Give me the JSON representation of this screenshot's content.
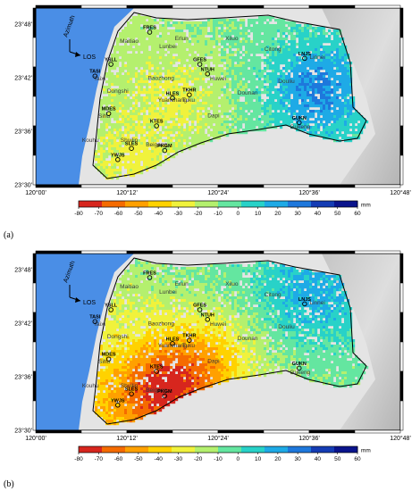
{
  "panels": [
    {
      "label": "(a)",
      "stations": [
        {
          "name": "FRES",
          "lon": 120.25,
          "lat": 23.785
        },
        {
          "name": "YSLL",
          "lon": 120.165,
          "lat": 23.725
        },
        {
          "name": "TASI",
          "lon": 120.13,
          "lat": 23.703
        },
        {
          "name": "GFES",
          "lon": 120.36,
          "lat": 23.725
        },
        {
          "name": "NTUH",
          "lon": 120.377,
          "lat": 23.707
        },
        {
          "name": "LNJS",
          "lon": 120.59,
          "lat": 23.736
        },
        {
          "name": "HLES",
          "lon": 120.3,
          "lat": 23.662
        },
        {
          "name": "TKHR",
          "lon": 120.337,
          "lat": 23.668
        },
        {
          "name": "MDES",
          "lon": 120.16,
          "lat": 23.633
        },
        {
          "name": "KTES",
          "lon": 120.265,
          "lat": 23.61
        },
        {
          "name": "GUKN",
          "lon": 120.578,
          "lat": 23.616
        },
        {
          "name": "SLES",
          "lon": 120.21,
          "lat": 23.568
        },
        {
          "name": "PKGM",
          "lon": 120.283,
          "lat": 23.564
        },
        {
          "name": "YWJS",
          "lon": 120.18,
          "lat": 23.547
        }
      ],
      "places": [
        {
          "name": "Maitiao",
          "lon": 120.205,
          "lat": 23.765
        },
        {
          "name": "Erlun",
          "lon": 120.32,
          "lat": 23.77
        },
        {
          "name": "Lunbei",
          "lon": 120.29,
          "lat": 23.755
        },
        {
          "name": "Xiluo",
          "lon": 120.43,
          "lat": 23.77
        },
        {
          "name": "Citong",
          "lon": 120.52,
          "lat": 23.75
        },
        {
          "name": "Linnei",
          "lon": 120.618,
          "lat": 23.735
        },
        {
          "name": "Taixi",
          "lon": 120.14,
          "lat": 23.695
        },
        {
          "name": "Baozhong",
          "lon": 120.275,
          "lat": 23.696
        },
        {
          "name": "Huwei",
          "lon": 120.4,
          "lat": 23.695
        },
        {
          "name": "Douliu",
          "lon": 120.55,
          "lat": 23.69
        },
        {
          "name": "Dongshi",
          "lon": 120.18,
          "lat": 23.672
        },
        {
          "name": "Yuanchang",
          "lon": 120.3,
          "lat": 23.655
        },
        {
          "name": "Tuku",
          "lon": 120.335,
          "lat": 23.655
        },
        {
          "name": "Dounan",
          "lon": 120.465,
          "lat": 23.668
        },
        {
          "name": "Sihu",
          "lon": 120.15,
          "lat": 23.625
        },
        {
          "name": "Dapi",
          "lon": 120.39,
          "lat": 23.626
        },
        {
          "name": "Gukeng",
          "lon": 120.58,
          "lat": 23.605
        },
        {
          "name": "Kouhu",
          "lon": 120.12,
          "lat": 23.58
        },
        {
          "name": "Shuilin",
          "lon": 120.205,
          "lat": 23.58
        },
        {
          "name": "Beigang",
          "lon": 120.265,
          "lat": 23.572
        }
      ]
    },
    {
      "label": "(b)",
      "stations": [
        {
          "name": "FRES",
          "lon": 120.25,
          "lat": 23.785
        },
        {
          "name": "YSLL",
          "lon": 120.165,
          "lat": 23.725
        },
        {
          "name": "TASI",
          "lon": 120.13,
          "lat": 23.703
        },
        {
          "name": "GFES",
          "lon": 120.36,
          "lat": 23.725
        },
        {
          "name": "NTUH",
          "lon": 120.377,
          "lat": 23.707
        },
        {
          "name": "LNJS",
          "lon": 120.59,
          "lat": 23.736
        },
        {
          "name": "HLES",
          "lon": 120.3,
          "lat": 23.662
        },
        {
          "name": "TKHR",
          "lon": 120.337,
          "lat": 23.668
        },
        {
          "name": "MDES",
          "lon": 120.16,
          "lat": 23.633
        },
        {
          "name": "KTES",
          "lon": 120.265,
          "lat": 23.61
        },
        {
          "name": "GUKN",
          "lon": 120.578,
          "lat": 23.616
        },
        {
          "name": "SLES",
          "lon": 120.21,
          "lat": 23.568
        },
        {
          "name": "PKGM",
          "lon": 120.283,
          "lat": 23.564
        },
        {
          "name": "YWJS",
          "lon": 120.18,
          "lat": 23.547
        }
      ],
      "places": [
        {
          "name": "Maitiao",
          "lon": 120.205,
          "lat": 23.765
        },
        {
          "name": "Erlun",
          "lon": 120.32,
          "lat": 23.77
        },
        {
          "name": "Lunbei",
          "lon": 120.29,
          "lat": 23.755
        },
        {
          "name": "Xiluo",
          "lon": 120.43,
          "lat": 23.77
        },
        {
          "name": "Citong",
          "lon": 120.52,
          "lat": 23.75
        },
        {
          "name": "Linnei",
          "lon": 120.618,
          "lat": 23.735
        },
        {
          "name": "Taixi",
          "lon": 120.14,
          "lat": 23.695
        },
        {
          "name": "Baozhong",
          "lon": 120.275,
          "lat": 23.696
        },
        {
          "name": "Huwei",
          "lon": 120.4,
          "lat": 23.695
        },
        {
          "name": "Douliu",
          "lon": 120.55,
          "lat": 23.69
        },
        {
          "name": "Dongshi",
          "lon": 120.18,
          "lat": 23.672
        },
        {
          "name": "Yuanchang",
          "lon": 120.3,
          "lat": 23.655
        },
        {
          "name": "Tuku",
          "lon": 120.335,
          "lat": 23.655
        },
        {
          "name": "Dounan",
          "lon": 120.465,
          "lat": 23.668
        },
        {
          "name": "Sihu",
          "lon": 120.15,
          "lat": 23.625
        },
        {
          "name": "Dapi",
          "lon": 120.39,
          "lat": 23.626
        },
        {
          "name": "Gukeng",
          "lon": 120.58,
          "lat": 23.605
        },
        {
          "name": "Kouhu",
          "lon": 120.12,
          "lat": 23.58
        },
        {
          "name": "Shuilin",
          "lon": 120.205,
          "lat": 23.58
        },
        {
          "name": "Beigang",
          "lon": 120.265,
          "lat": 23.572
        }
      ]
    }
  ],
  "axes": {
    "lon_ticks": [
      "120°00'",
      "120°12'",
      "120°24'",
      "120°36'",
      "120°48'"
    ],
    "lat_ticks": [
      "23°48'",
      "23°42'",
      "23°36'",
      "23°30'"
    ],
    "lon_range": [
      120.0,
      120.8
    ],
    "lat_range": [
      23.5,
      23.83
    ]
  },
  "legend": {
    "azimuth": "Azimuth",
    "los": "LOS"
  },
  "colorbar": {
    "ticks": [
      "-80",
      "-70",
      "-60",
      "-50",
      "-40",
      "-30",
      "-20",
      "-10",
      "0",
      "10",
      "20",
      "30",
      "40",
      "50",
      "60"
    ],
    "unit": "mm",
    "range": [
      -80,
      60
    ],
    "colors": [
      "#d7261e",
      "#f56b00",
      "#ffa000",
      "#ffd200",
      "#f0f23c",
      "#b4f06e",
      "#64e6a0",
      "#28d2c8",
      "#1eaae6",
      "#1e78dc",
      "#143cb4",
      "#0a148c"
    ]
  },
  "colors": {
    "sea": "#4a8ee6",
    "land_bg": "#e4e4e4",
    "hill": "#c8c8c8",
    "frame": "#000000"
  }
}
